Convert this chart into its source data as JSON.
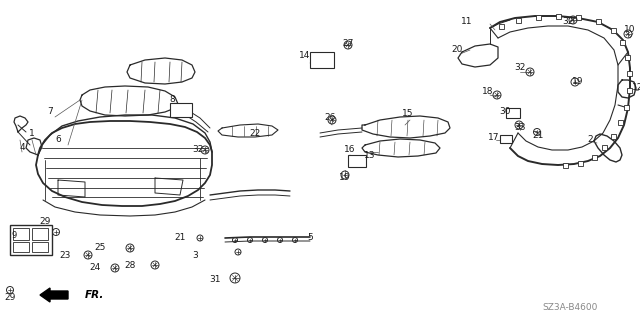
{
  "diagram_code": "SZ3A-B4600",
  "bg_color": "#ffffff",
  "line_color": "#2a2a2a",
  "text_color": "#1a1a1a",
  "fig_width": 6.4,
  "fig_height": 3.19,
  "dpi": 100
}
